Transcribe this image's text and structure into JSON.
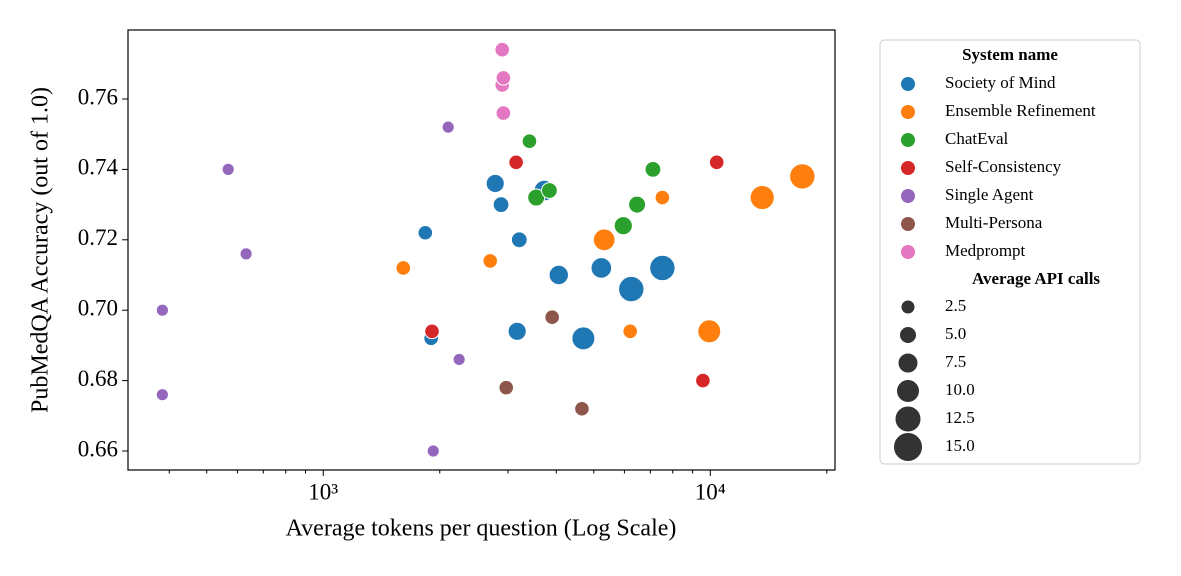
{
  "chart_data": {
    "type": "scatter",
    "xlabel": "Average tokens per question (Log Scale)",
    "ylabel": "PubMedQA Accuracy (out of 1.0)",
    "xscale": "log",
    "xlim": [
      313,
      21000
    ],
    "ylim": [
      0.6546,
      0.7796
    ],
    "xticks": [
      {
        "value": 1000,
        "label": "10³"
      },
      {
        "value": 10000,
        "label": "10⁴"
      }
    ],
    "xminorticks": [
      400,
      500,
      600,
      700,
      800,
      900,
      2000,
      3000,
      4000,
      5000,
      6000,
      7000,
      8000,
      9000,
      20000
    ],
    "yticks": [
      0.66,
      0.68,
      {
        "value": 0.7,
        "label": "0.70"
      },
      0.72,
      0.74,
      0.76
    ],
    "legend_title": "System name",
    "legend_position": "outside right",
    "size_legend": {
      "title": "Average API calls",
      "values": [
        2.5,
        {
          "value": 5,
          "label": "5.0"
        },
        {
          "value": 7.5,
          "label": "7.5"
        },
        {
          "value": 10,
          "label": "10.0"
        },
        {
          "value": 12.5,
          "label": "12.5"
        },
        {
          "value": 15,
          "label": "15.0"
        }
      ]
    },
    "series": [
      {
        "name": "Society of Mind",
        "color": "#1f77b4",
        "x": [
          1835,
          1900,
          2782,
          2880,
          3210,
          3170,
          3726,
          4060,
          4700,
          5230,
          6250,
          7520
        ],
        "values": [
          0.722,
          0.692,
          0.736,
          0.73,
          0.72,
          0.694,
          0.734,
          0.71,
          0.692,
          0.712,
          0.706,
          0.712
        ],
        "sizes": [
          3,
          3,
          6,
          4,
          4,
          6,
          8,
          7,
          10,
          8,
          12,
          12
        ]
      },
      {
        "name": "Ensemble Refinement",
        "color": "#ff7f0e",
        "x": [
          1610,
          2700,
          5320,
          6210,
          7520,
          9940,
          13620,
          17290
        ],
        "values": [
          0.712,
          0.714,
          0.72,
          0.694,
          0.732,
          0.694,
          0.732,
          0.738
        ],
        "sizes": [
          3,
          3,
          9,
          3,
          3,
          10,
          11,
          12
        ]
      },
      {
        "name": "ChatEval",
        "color": "#2ca02c",
        "x": [
          3410,
          3550,
          3840,
          5960,
          6470,
          7110
        ],
        "values": [
          0.748,
          0.732,
          0.734,
          0.724,
          0.73,
          0.74
        ],
        "sizes": [
          3,
          5,
          4,
          6,
          5,
          4
        ]
      },
      {
        "name": "Self-Consistency",
        "color": "#d62728",
        "x": [
          1910,
          3150,
          9570,
          10390
        ],
        "values": [
          0.694,
          0.742,
          0.68,
          0.742
        ],
        "sizes": [
          3,
          3,
          3,
          3
        ]
      },
      {
        "name": "Single Agent",
        "color": "#9467bd",
        "x": [
          384,
          384,
          568,
          632,
          1924,
          2103,
          2245
        ],
        "values": [
          0.676,
          0.7,
          0.74,
          0.716,
          0.66,
          0.752,
          0.686
        ],
        "sizes": [
          1,
          1,
          1,
          1,
          1,
          1,
          1
        ]
      },
      {
        "name": "Multi-Persona",
        "color": "#8c564b",
        "x": [
          2970,
          3904,
          4660
        ],
        "values": [
          0.678,
          0.698,
          0.672
        ],
        "sizes": [
          3,
          3,
          3
        ]
      },
      {
        "name": "Medprompt",
        "color": "#e377c2",
        "x": [
          2900,
          2900,
          2920,
          2920
        ],
        "values": [
          0.774,
          0.764,
          0.766,
          0.756
        ],
        "sizes": [
          3,
          3,
          3,
          3
        ]
      }
    ]
  }
}
